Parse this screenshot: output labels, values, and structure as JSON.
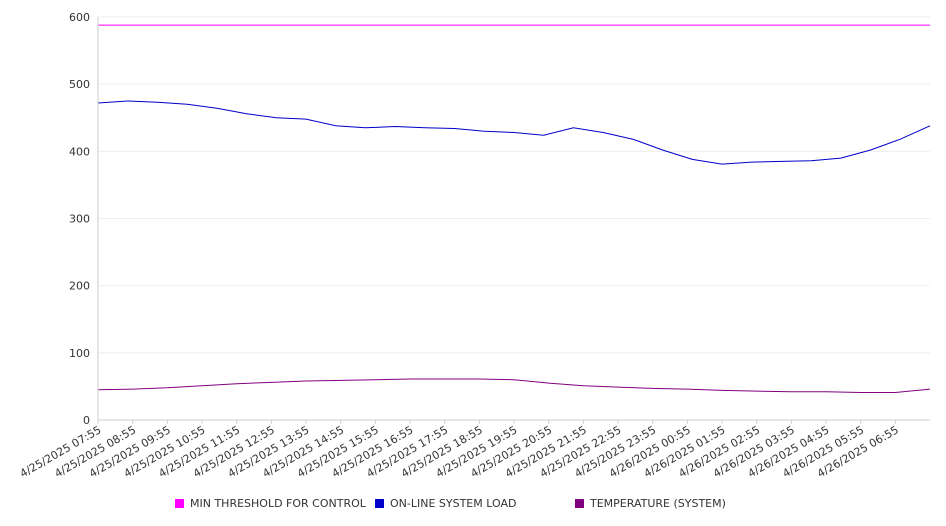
{
  "chart_data": {
    "type": "line",
    "title": "",
    "xlabel": "",
    "ylabel": "",
    "ylim": [
      0,
      600
    ],
    "y_ticks": [
      "0",
      "100",
      "200",
      "300",
      "400",
      "500",
      "600"
    ],
    "x_tick_labels": [
      "4/25/2025 07:55",
      "4/25/2025 08:55",
      "4/25/2025 09:55",
      "4/25/2025 10:55",
      "4/25/2025 11:55",
      "4/25/2025 12:55",
      "4/25/2025 13:55",
      "4/25/2025 14:55",
      "4/25/2025 15:55",
      "4/25/2025 16:55",
      "4/25/2025 17:55",
      "4/25/2025 18:55",
      "4/25/2025 19:55",
      "4/25/2025 20:55",
      "4/25/2025 21:55",
      "4/25/2025 22:55",
      "4/25/2025 23:55",
      "4/26/2025 00:55",
      "4/26/2025 01:55",
      "4/26/2025 02:55",
      "4/26/2025 03:55",
      "4/26/2025 04:55",
      "4/26/2025 05:55",
      "4/26/2025 06:55"
    ],
    "grid": true,
    "legend_position": "bottom",
    "series": [
      {
        "name": "MIN THRESHOLD FOR CONTROL",
        "color": "#ff00ff",
        "values": [
          588,
          588,
          588,
          588,
          588,
          588,
          588,
          588,
          588,
          588,
          588,
          588,
          588,
          588,
          588,
          588,
          588,
          588,
          588,
          588,
          588,
          588,
          588,
          588,
          588
        ]
      },
      {
        "name": "ON-LINE SYSTEM LOAD",
        "color": "#0000cc",
        "values": [
          472,
          475,
          473,
          470,
          464,
          456,
          450,
          448,
          438,
          435,
          437,
          435,
          434,
          430,
          428,
          424,
          435,
          428,
          418,
          402,
          388,
          381,
          384,
          385,
          386,
          390,
          402,
          418,
          438
        ]
      },
      {
        "name": "TEMPERATURE (SYSTEM)",
        "color": "#800080",
        "values": [
          45,
          46,
          48,
          51,
          54,
          56,
          58,
          59,
          60,
          61,
          61,
          61,
          60,
          55,
          51,
          49,
          47,
          46,
          44,
          43,
          42,
          42,
          41,
          41,
          46
        ]
      }
    ]
  }
}
